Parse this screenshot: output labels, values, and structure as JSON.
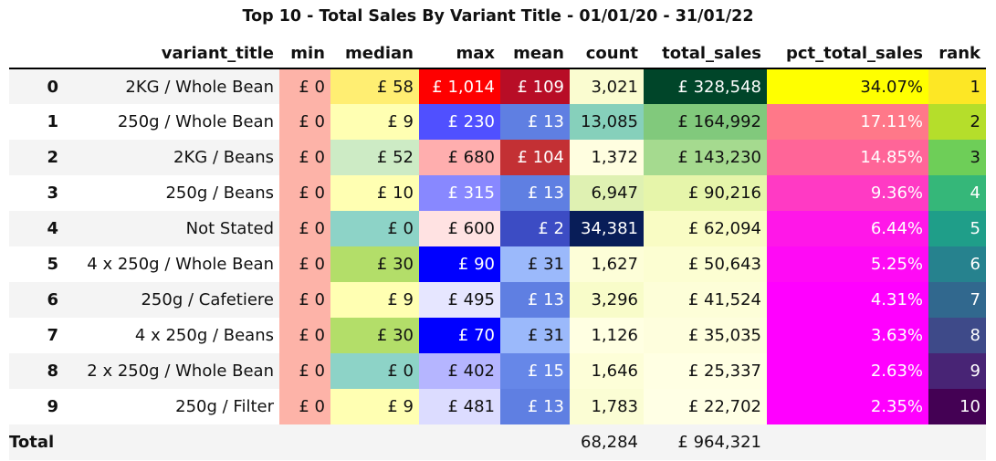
{
  "title": "Top 10 - Total Sales By Variant Title - 01/01/20 - 31/01/22",
  "chart_data": {
    "type": "table",
    "columns": [
      "",
      "variant_title",
      "min",
      "median",
      "max",
      "mean",
      "count",
      "total_sales",
      "pct_total_sales",
      "rank"
    ],
    "rows": [
      {
        "index": "0",
        "variant_title": "2KG / Whole Bean",
        "min": "£ 0",
        "median": "£ 58",
        "max": "£ 1,014",
        "mean": "£ 109",
        "count": "3,021",
        "total_sales": "£ 328,548",
        "pct_total_sales": "34.07%",
        "rank": "1",
        "colors": {
          "min": "#fdb3a8",
          "median": "#ffee72",
          "max": "#fe0000",
          "mean": "#b80d26",
          "count": "#fafcd0",
          "total_sales": "#004529",
          "pct_total_sales": "#ffff00",
          "rank": "#fde725"
        },
        "text": {
          "min": "#111111",
          "median": "#111111",
          "max": "#ffffff",
          "mean": "#ffffff",
          "count": "#111111",
          "total_sales": "#ffffff",
          "pct_total_sales": "#111111",
          "rank": "#111111"
        }
      },
      {
        "index": "1",
        "variant_title": "250g / Whole Bean",
        "min": "£ 0",
        "median": "£ 9",
        "max": "£ 230",
        "mean": "£ 13",
        "count": "13,085",
        "total_sales": "£ 164,992",
        "pct_total_sales": "17.11%",
        "rank": "2",
        "colors": {
          "min": "#fdb3a8",
          "median": "#ffffb2",
          "max": "#5050ff",
          "mean": "#5f7fe2",
          "count": "#86d0bb",
          "total_sales": "#81c97c",
          "pct_total_sales": "#ff7889",
          "rank": "#b5de2b"
        },
        "text": {
          "min": "#111111",
          "median": "#111111",
          "max": "#ffffff",
          "mean": "#ffffff",
          "count": "#111111",
          "total_sales": "#111111",
          "pct_total_sales": "#ffffff",
          "rank": "#111111"
        }
      },
      {
        "index": "2",
        "variant_title": "2KG / Beans",
        "min": "£ 0",
        "median": "£ 52",
        "max": "£ 680",
        "mean": "£ 104",
        "count": "1,372",
        "total_sales": "£ 143,230",
        "pct_total_sales": "14.85%",
        "rank": "3",
        "colors": {
          "min": "#fdb3a8",
          "median": "#cdebc5",
          "max": "#ffaeae",
          "mean": "#c33034",
          "count": "#fffee0",
          "total_sales": "#a5da8f",
          "pct_total_sales": "#ff6598",
          "rank": "#6ece58"
        },
        "text": {
          "min": "#111111",
          "median": "#111111",
          "max": "#111111",
          "mean": "#ffffff",
          "count": "#111111",
          "total_sales": "#111111",
          "pct_total_sales": "#ffffff",
          "rank": "#111111"
        }
      },
      {
        "index": "3",
        "variant_title": "250g / Beans",
        "min": "£ 0",
        "median": "£ 10",
        "max": "£ 315",
        "mean": "£ 13",
        "count": "6,947",
        "total_sales": "£ 90,216",
        "pct_total_sales": "9.36%",
        "rank": "4",
        "colors": {
          "min": "#fdb3a8",
          "median": "#ffffb2",
          "max": "#8888ff",
          "mean": "#5f7fe2",
          "count": "#dff1b2",
          "total_sales": "#e6f5aa",
          "pct_total_sales": "#ff3ac4",
          "rank": "#35b779"
        },
        "text": {
          "min": "#111111",
          "median": "#111111",
          "max": "#ffffff",
          "mean": "#ffffff",
          "count": "#111111",
          "total_sales": "#111111",
          "pct_total_sales": "#ffffff",
          "rank": "#ffffff"
        }
      },
      {
        "index": "4",
        "variant_title": "Not Stated",
        "min": "£ 0",
        "median": "£ 0",
        "max": "£ 600",
        "mean": "£ 2",
        "count": "34,381",
        "total_sales": "£ 62,094",
        "pct_total_sales": "6.44%",
        "rank": "5",
        "colors": {
          "min": "#fdb3a8",
          "median": "#8dd3c7",
          "max": "#ffe2e2",
          "mean": "#3c4cc4",
          "count": "#081d58",
          "total_sales": "#f9fcc4",
          "pct_total_sales": "#ff17e8",
          "rank": "#1f9e89"
        },
        "text": {
          "min": "#111111",
          "median": "#111111",
          "max": "#111111",
          "mean": "#ffffff",
          "count": "#ffffff",
          "total_sales": "#111111",
          "pct_total_sales": "#ffffff",
          "rank": "#ffffff"
        }
      },
      {
        "index": "5",
        "variant_title": "4 x 250g / Whole Bean",
        "min": "£ 0",
        "median": "£ 30",
        "max": "£ 90",
        "mean": "£ 31",
        "count": "1,627",
        "total_sales": "£ 50,643",
        "pct_total_sales": "5.25%",
        "rank": "6",
        "colors": {
          "min": "#fdb3a8",
          "median": "#b3de69",
          "max": "#0000ff",
          "mean": "#9bb9fb",
          "count": "#fdfed8",
          "total_sales": "#fcfed2",
          "pct_total_sales": "#ff0af5",
          "rank": "#26828e"
        },
        "text": {
          "min": "#111111",
          "median": "#111111",
          "max": "#ffffff",
          "mean": "#111111",
          "count": "#111111",
          "total_sales": "#111111",
          "pct_total_sales": "#ffffff",
          "rank": "#ffffff"
        }
      },
      {
        "index": "6",
        "variant_title": "250g / Cafetiere",
        "min": "£ 0",
        "median": "£ 9",
        "max": "£ 495",
        "mean": "£ 13",
        "count": "3,296",
        "total_sales": "£ 41,524",
        "pct_total_sales": "4.31%",
        "rank": "7",
        "colors": {
          "min": "#fdb3a8",
          "median": "#ffffb2",
          "max": "#e6e6ff",
          "mean": "#5f7fe2",
          "count": "#f8fcc9",
          "total_sales": "#fdfed8",
          "pct_total_sales": "#ff00ff",
          "rank": "#31688e"
        },
        "text": {
          "min": "#111111",
          "median": "#111111",
          "max": "#111111",
          "mean": "#ffffff",
          "count": "#111111",
          "total_sales": "#111111",
          "pct_total_sales": "#ffffff",
          "rank": "#ffffff"
        }
      },
      {
        "index": "7",
        "variant_title": "4 x 250g / Beans",
        "min": "£ 0",
        "median": "£ 30",
        "max": "£ 70",
        "mean": "£ 31",
        "count": "1,126",
        "total_sales": "£ 35,035",
        "pct_total_sales": "3.63%",
        "rank": "8",
        "colors": {
          "min": "#fdb3a8",
          "median": "#b3de69",
          "max": "#0000ff",
          "mean": "#9bb9fb",
          "count": "#ffffe2",
          "total_sales": "#fefedd",
          "pct_total_sales": "#ff00ff",
          "rank": "#3e4a89"
        },
        "text": {
          "min": "#111111",
          "median": "#111111",
          "max": "#ffffff",
          "mean": "#111111",
          "count": "#111111",
          "total_sales": "#111111",
          "pct_total_sales": "#ffffff",
          "rank": "#ffffff"
        }
      },
      {
        "index": "8",
        "variant_title": "2 x 250g / Whole Bean",
        "min": "£ 0",
        "median": "£ 0",
        "max": "£ 402",
        "mean": "£ 15",
        "count": "1,646",
        "total_sales": "£ 25,337",
        "pct_total_sales": "2.63%",
        "rank": "9",
        "colors": {
          "min": "#fdb3a8",
          "median": "#8dd3c7",
          "max": "#b5b5ff",
          "mean": "#6687e8",
          "count": "#fdfed8",
          "total_sales": "#ffffe3",
          "pct_total_sales": "#ff00ff",
          "rank": "#482475"
        },
        "text": {
          "min": "#111111",
          "median": "#111111",
          "max": "#111111",
          "mean": "#ffffff",
          "count": "#111111",
          "total_sales": "#111111",
          "pct_total_sales": "#ffffff",
          "rank": "#ffffff"
        }
      },
      {
        "index": "9",
        "variant_title": "250g / Filter",
        "min": "£ 0",
        "median": "£ 9",
        "max": "£ 481",
        "mean": "£ 13",
        "count": "1,783",
        "total_sales": "£ 22,702",
        "pct_total_sales": "2.35%",
        "rank": "10",
        "colors": {
          "min": "#fdb3a8",
          "median": "#ffffb2",
          "max": "#dcdcff",
          "mean": "#5f7fe2",
          "count": "#fbfdd4",
          "total_sales": "#ffffe5",
          "pct_total_sales": "#ff00ff",
          "rank": "#440154"
        },
        "text": {
          "min": "#111111",
          "median": "#111111",
          "max": "#111111",
          "mean": "#ffffff",
          "count": "#111111",
          "total_sales": "#111111",
          "pct_total_sales": "#ffffff",
          "rank": "#ffffff"
        }
      }
    ],
    "total": {
      "label": "Total",
      "count": "68,284",
      "total_sales": "£ 964,321"
    }
  }
}
